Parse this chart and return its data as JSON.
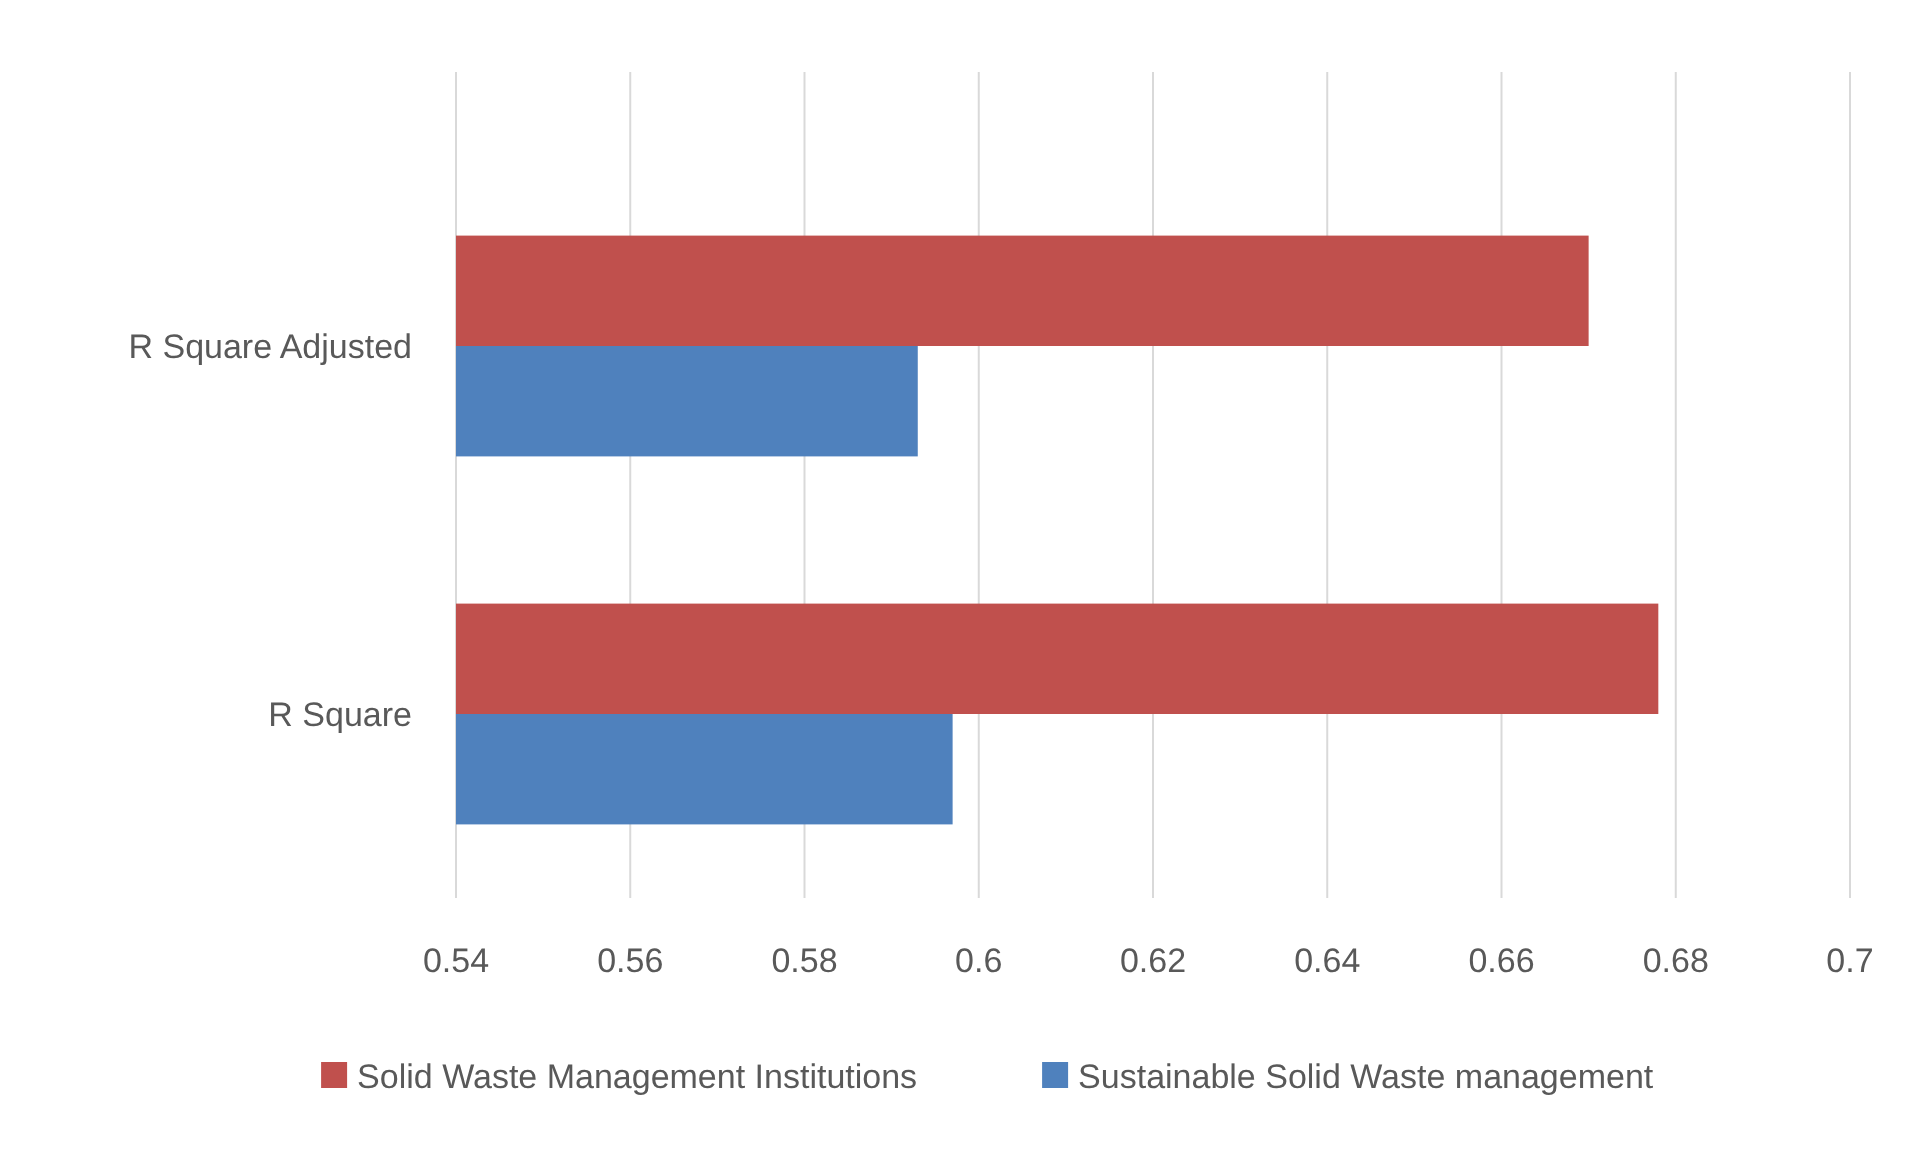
{
  "chart_data": {
    "type": "bar",
    "orientation": "horizontal",
    "categories": [
      "R Square Adjusted",
      "R Square"
    ],
    "series": [
      {
        "name": "Solid Waste Management Institutions",
        "color": "#c0504d",
        "values": [
          0.67,
          0.678
        ]
      },
      {
        "name": "Sustainable Solid Waste management",
        "color": "#4f81bd",
        "values": [
          0.593,
          0.597
        ]
      }
    ],
    "xlim": [
      0.54,
      0.7
    ],
    "xticks": [
      0.54,
      0.56,
      0.58,
      0.6,
      0.62,
      0.64,
      0.66,
      0.68,
      0.7
    ],
    "grid": "x",
    "legend": "bottom"
  }
}
